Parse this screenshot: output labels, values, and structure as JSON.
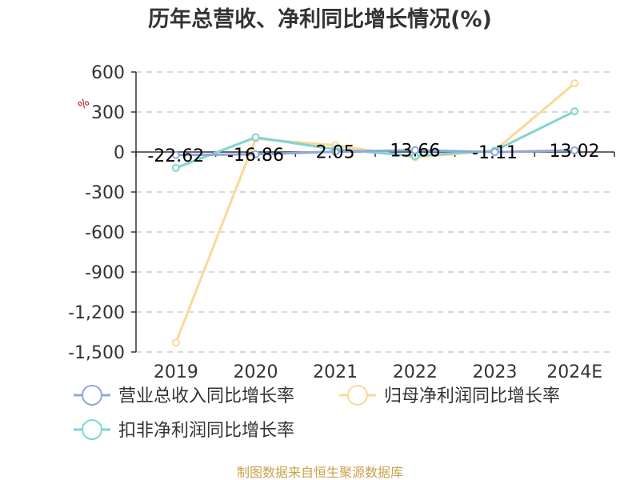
{
  "chart_data": {
    "type": "line",
    "title": "历年总营收、净利同比增长情况(%)",
    "unit_label": "%",
    "categories": [
      "2019",
      "2020",
      "2021",
      "2022",
      "2023",
      "2024E"
    ],
    "ylim": [
      -1500,
      600
    ],
    "yticks": [
      600,
      300,
      0,
      -300,
      -600,
      -900,
      -1200,
      -1500
    ],
    "ytick_labels": [
      "600",
      "300",
      "0",
      "-300",
      "-600",
      "-900",
      "-1,200",
      "-1,500"
    ],
    "grid": true,
    "legend_position": "bottom",
    "series": [
      {
        "name": "营业总收入同比增长率",
        "color": "#8fa8d8",
        "values": [
          -22.62,
          -16.86,
          2.05,
          13.66,
          -1.11,
          13.02
        ],
        "data_labels": [
          "-22.62",
          "-16.86",
          "2.05",
          "13.66",
          "-1.11",
          "13.02"
        ]
      },
      {
        "name": "归母净利润同比增长率",
        "color": "#fbd896",
        "values": [
          -1430,
          100,
          50,
          -40,
          10,
          515
        ]
      },
      {
        "name": "扣非净利润同比增长率",
        "color": "#7fd4d4",
        "values": [
          -120,
          110,
          20,
          -30,
          10,
          305
        ]
      }
    ],
    "source": "制图数据来自恒生聚源数据库"
  }
}
